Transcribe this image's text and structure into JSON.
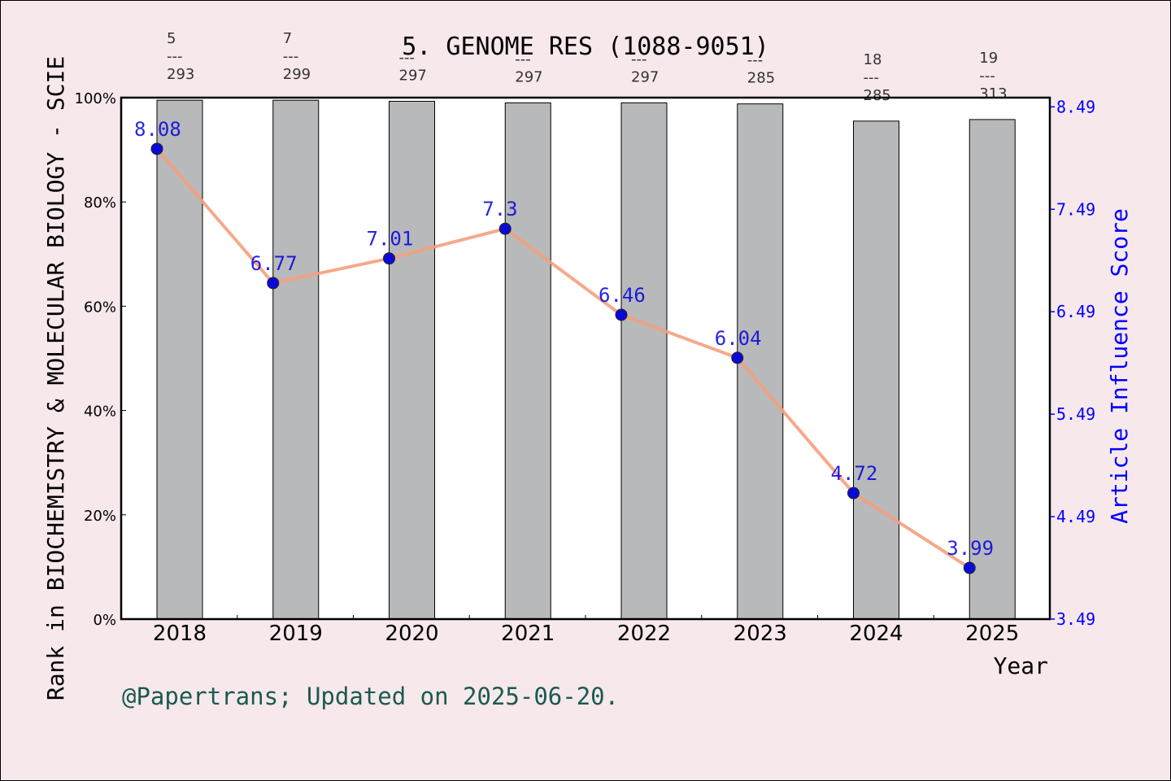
{
  "chart_data": {
    "type": "bar+line",
    "title": "5. GENOME RES (1088-9051)",
    "xlabel": "Year",
    "ylabel_left": "Rank in BIOCHEMISTRY & MOLECULAR BIOLOGY - SCIE",
    "ylabel_right": "Article Influence Score",
    "categories": [
      "2018",
      "2019",
      "2020",
      "2021",
      "2022",
      "2023",
      "2024",
      "2025"
    ],
    "left_axis": {
      "ylim": [
        0,
        100
      ],
      "ticks": [
        0,
        20,
        40,
        60,
        80,
        100
      ],
      "tick_labels": [
        "0%",
        "20%",
        "40%",
        "60%",
        "80%",
        "100%"
      ]
    },
    "right_axis": {
      "ylim": [
        3.49,
        8.58
      ],
      "ticks": [
        3.49,
        4.49,
        5.49,
        6.49,
        7.49,
        8.49
      ],
      "tick_labels": [
        "3.49",
        "4.49",
        "5.49",
        "6.49",
        "7.49",
        "8.49"
      ]
    },
    "bars": {
      "values_percent": [
        99.5,
        99.5,
        99.3,
        99.0,
        99.0,
        98.8,
        95.5,
        95.8
      ],
      "rank_labels": [
        {
          "rank": "5",
          "sep": "---",
          "total": "293"
        },
        {
          "rank": "7",
          "sep": "---",
          "total": "299"
        },
        {
          "rank": "",
          "sep": "---",
          "total": "297"
        },
        {
          "rank": "",
          "sep": "---",
          "total": "297"
        },
        {
          "rank": "",
          "sep": "---",
          "total": "297"
        },
        {
          "rank": "",
          "sep": "---",
          "total": "285"
        },
        {
          "rank": "18",
          "sep": "---",
          "total": "285"
        },
        {
          "rank": "19",
          "sep": "---",
          "total": "313"
        }
      ],
      "color": "#b8b9bb"
    },
    "line": {
      "name": "Article Influence Score",
      "values": [
        8.08,
        6.77,
        7.01,
        7.3,
        6.46,
        6.04,
        4.72,
        3.99
      ],
      "labels": [
        "8.08",
        "6.77",
        "7.01",
        "7.3",
        "6.46",
        "6.04",
        "4.72",
        "3.99"
      ],
      "line_color": "#f4a07e",
      "marker_color": "#0a0ad8",
      "label_color": "#0000dd"
    },
    "grid": false,
    "footer": "@Papertrans; Updated on 2025-06-20."
  }
}
